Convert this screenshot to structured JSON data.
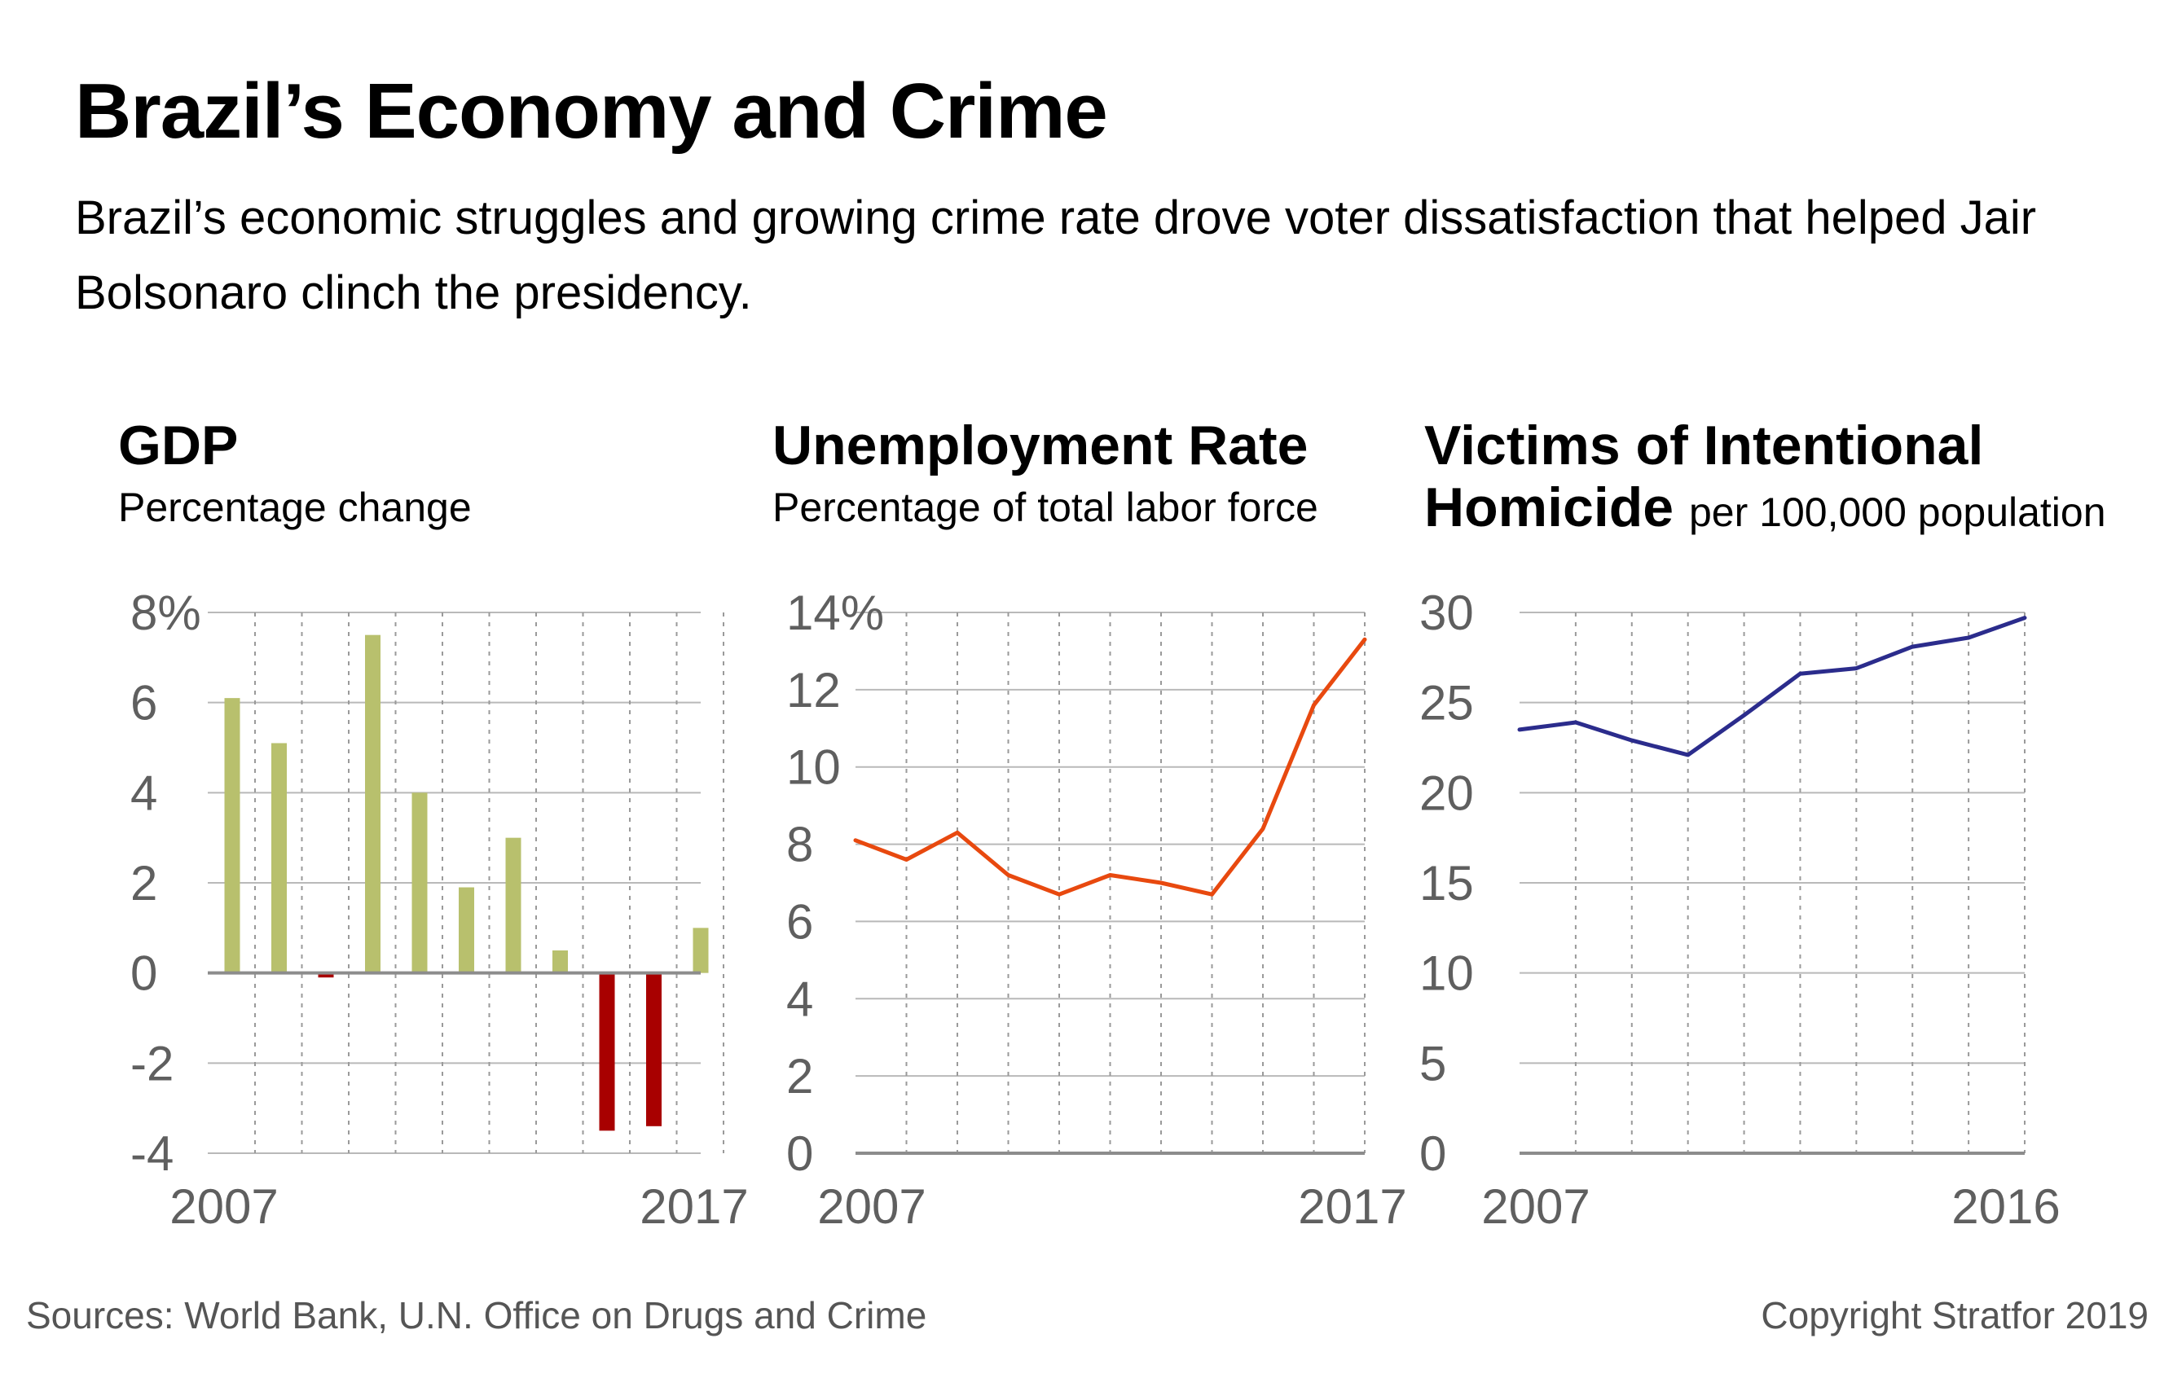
{
  "header": {
    "title": "Brazil’s Economy and Crime",
    "subtitle": "Brazil’s economic struggles and growing crime rate drove voter dissatisfaction that helped Jair Bolsonaro clinch the presidency."
  },
  "colors": {
    "gdp_positive": "#b8c06d",
    "gdp_negative": "#a80000",
    "unemployment": "#e8490f",
    "homicide": "#2b2c8c"
  },
  "chart_data": [
    {
      "type": "bar",
      "title": "GDP",
      "subtitle": "Percentage change",
      "x": [
        2007,
        2008,
        2009,
        2010,
        2011,
        2012,
        2013,
        2014,
        2015,
        2016,
        2017
      ],
      "values": [
        6.1,
        5.1,
        -0.1,
        7.5,
        4.0,
        1.9,
        3.0,
        0.5,
        -3.5,
        -3.4,
        1.0
      ],
      "ylim": [
        -4,
        8
      ],
      "yticks": [
        8,
        6,
        4,
        2,
        0,
        -2,
        -4
      ],
      "ytick_labels": [
        "8%",
        "6",
        "4",
        "2",
        "0",
        "-2",
        "-4"
      ],
      "xtick_labels": [
        "2007",
        "2017"
      ],
      "grid": true
    },
    {
      "type": "line",
      "title": "Unemployment Rate",
      "subtitle": "Percentage of total labor force",
      "x": [
        2007,
        2008,
        2009,
        2010,
        2011,
        2012,
        2013,
        2014,
        2015,
        2016,
        2017
      ],
      "values": [
        8.1,
        7.6,
        8.3,
        7.2,
        6.7,
        7.2,
        7.0,
        6.7,
        8.4,
        11.6,
        13.3
      ],
      "ylim": [
        0,
        14
      ],
      "yticks": [
        14,
        12,
        10,
        8,
        6,
        4,
        2,
        0
      ],
      "ytick_labels": [
        "14%",
        "12",
        "10",
        "8",
        "6",
        "4",
        "2",
        "0"
      ],
      "xtick_labels": [
        "2007",
        "2017"
      ],
      "grid": true
    },
    {
      "type": "line",
      "title": "Victims of Intentional Homicide",
      "title_line1": "Victims of Intentional",
      "title_line2": "Homicide",
      "subtitle": "per 100,000 population",
      "x": [
        2007,
        2008,
        2009,
        2010,
        2011,
        2012,
        2013,
        2014,
        2015,
        2016
      ],
      "values": [
        23.5,
        23.9,
        22.9,
        22.1,
        24.3,
        26.6,
        26.9,
        28.1,
        28.6,
        29.7
      ],
      "ylim": [
        0,
        30
      ],
      "yticks": [
        30,
        25,
        20,
        15,
        10,
        5,
        0
      ],
      "ytick_labels": [
        "30",
        "25",
        "20",
        "15",
        "10",
        "5",
        "0"
      ],
      "xtick_labels": [
        "2007",
        "2016"
      ],
      "grid": true
    }
  ],
  "footer": {
    "sources": "Sources: World Bank, U.N. Office on Drugs and Crime",
    "copyright": "Copyright Stratfor 2019"
  }
}
